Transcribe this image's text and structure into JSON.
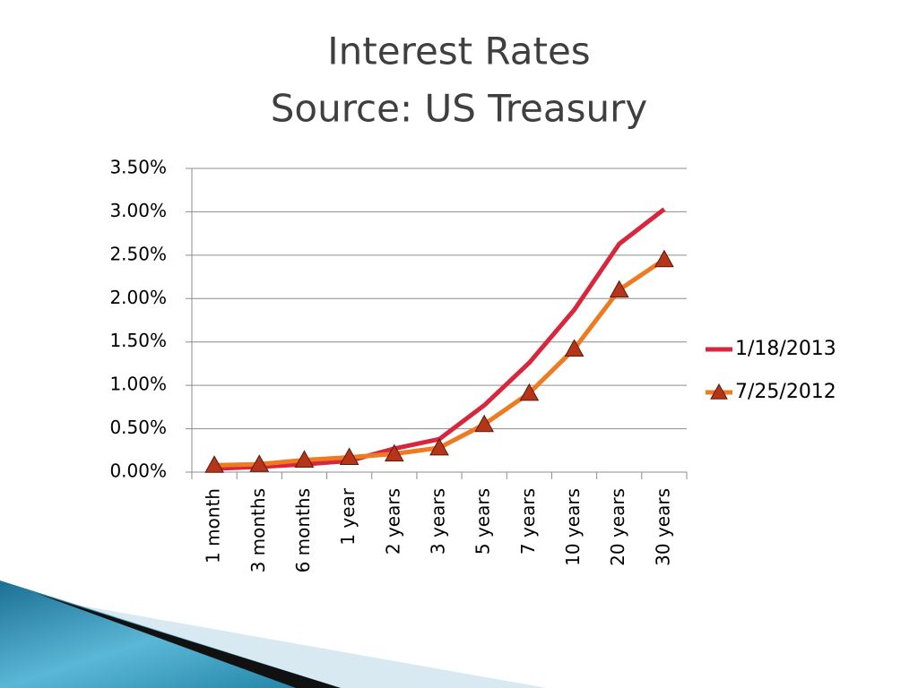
{
  "chart_data": {
    "type": "line",
    "title": "Interest Rates",
    "subtitle": "Source: US Treasury",
    "categories": [
      "1 month",
      "3 months",
      "6 months",
      "1 year",
      "2 years",
      "3 years",
      "5 years",
      "7 years",
      "10 years",
      "20 years",
      "30 years"
    ],
    "series": [
      {
        "name": "1/18/2013",
        "color": "#d7263d",
        "values": [
          0.04,
          0.06,
          0.09,
          0.13,
          0.27,
          0.38,
          0.77,
          1.26,
          1.87,
          2.63,
          3.03
        ]
      },
      {
        "name": "7/25/2012",
        "color": "#ee7a22",
        "marker": "triangle",
        "marker_color": "#b5341a",
        "values": [
          0.08,
          0.09,
          0.14,
          0.17,
          0.21,
          0.28,
          0.55,
          0.91,
          1.42,
          2.1,
          2.45
        ]
      }
    ],
    "ylim": [
      0,
      3.5
    ],
    "yticks": [
      {
        "value": 0,
        "label": "0.00%"
      },
      {
        "value": 0.5,
        "label": "0.50%"
      },
      {
        "value": 1,
        "label": "1.00%"
      },
      {
        "value": 1.5,
        "label": "1.50%"
      },
      {
        "value": 2,
        "label": "2.00%"
      },
      {
        "value": 2.5,
        "label": "2.50%"
      },
      {
        "value": 3,
        "label": "3.00%"
      },
      {
        "value": 3.5,
        "label": "3.50%"
      }
    ],
    "grid": true,
    "legend": "right"
  }
}
